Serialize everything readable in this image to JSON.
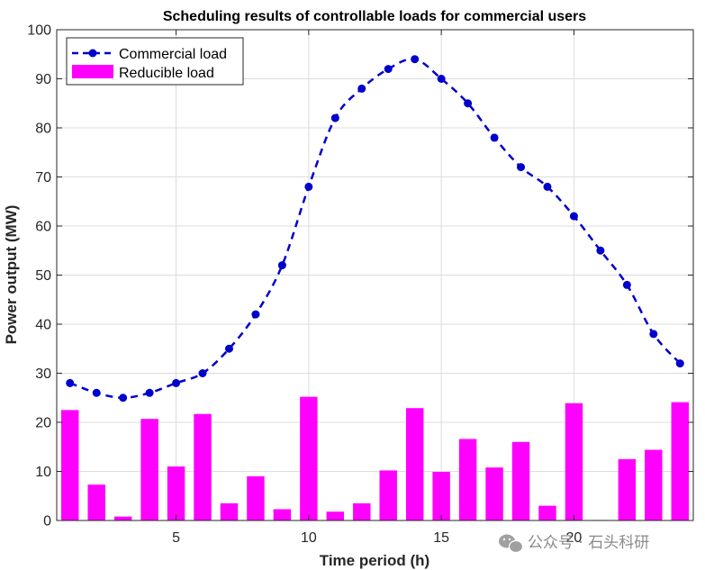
{
  "chart_data": {
    "type": "bar+line",
    "title": "Scheduling results of controllable loads for commercial users",
    "xlabel": "Time period (h)",
    "ylabel": "Power output (MW)",
    "xlim": [
      0.5,
      24.5
    ],
    "ylim": [
      0,
      100
    ],
    "xticks": [
      5,
      10,
      15,
      20
    ],
    "yticks": [
      0,
      10,
      20,
      30,
      40,
      50,
      60,
      70,
      80,
      90,
      100
    ],
    "grid": true,
    "legend_position": "top-left",
    "x": [
      1,
      2,
      3,
      4,
      5,
      6,
      7,
      8,
      9,
      10,
      11,
      12,
      13,
      14,
      15,
      16,
      17,
      18,
      19,
      20,
      21,
      22,
      23,
      24
    ],
    "series": [
      {
        "name": "Commercial load",
        "type": "line",
        "style": "dashed-with-markers",
        "color": "#0000CC",
        "values": [
          28,
          26,
          25,
          26,
          28,
          30,
          35,
          42,
          52,
          68,
          82,
          88,
          92,
          94,
          90,
          85,
          78,
          72,
          68,
          62,
          55,
          48,
          38,
          32
        ]
      },
      {
        "name": "Reducible load",
        "type": "bar",
        "color": "#FF00FF",
        "values": [
          22.5,
          7.3,
          0.8,
          20.7,
          11.0,
          21.7,
          3.5,
          9.0,
          2.3,
          25.2,
          1.8,
          3.5,
          10.2,
          22.9,
          9.9,
          16.6,
          10.8,
          16.0,
          3.0,
          23.9,
          0.1,
          12.5,
          14.4,
          24.1
        ]
      }
    ]
  },
  "watermark": {
    "text": "公众号 · 石头科研",
    "icon": "wechat-icon",
    "color": "#8a8a8a"
  }
}
